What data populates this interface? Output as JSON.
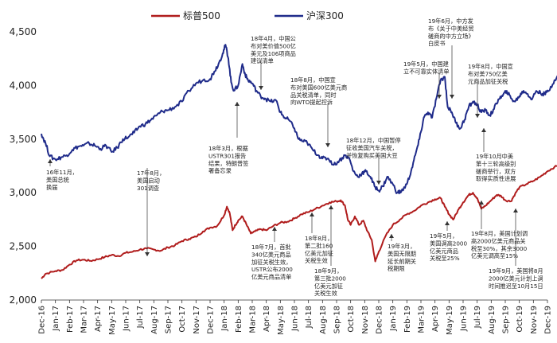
{
  "chart_data": {
    "type": "line",
    "title": "",
    "xlabel": "",
    "ylabel": "",
    "ylim": [
      2000,
      4500
    ],
    "y_ticks": [
      "2,000",
      "2,500",
      "3,000",
      "3,500",
      "4,000",
      "4,500"
    ],
    "y_tick_values": [
      2000,
      2500,
      3000,
      3500,
      4000,
      4500
    ],
    "grid": false,
    "legend": "top",
    "x_ticks": [
      "Dec-16",
      "Jan-17",
      "Feb-17",
      "Mar-17",
      "Apr-17",
      "May-17",
      "Jun-17",
      "Jul-17",
      "Aug-17",
      "Sep-17",
      "Oct-17",
      "Nov-17",
      "Dec-17",
      "Jan-18",
      "Feb-18",
      "Mar-18",
      "Apr-18",
      "May-18",
      "Jun-18",
      "Jul-18",
      "Aug-18",
      "Sep-18",
      "Oct-18",
      "Nov-18",
      "Dec-18",
      "Jan-19",
      "Feb-19",
      "Mar-19",
      "Apr-19",
      "May-19",
      "Jun-19",
      "Jul-19",
      "Aug-19",
      "Sep-19",
      "Oct-19",
      "Nov-19",
      "Dec-19"
    ],
    "series": [
      {
        "name": "标普500",
        "color": "#b01c1c",
        "points": [
          [
            0,
            2200
          ],
          [
            0.3,
            2245
          ],
          [
            1,
            2270
          ],
          [
            1.5,
            2280
          ],
          [
            2,
            2330
          ],
          [
            2.5,
            2370
          ],
          [
            3,
            2375
          ],
          [
            3.5,
            2365
          ],
          [
            4,
            2380
          ],
          [
            4.5,
            2400
          ],
          [
            5,
            2420
          ],
          [
            5.5,
            2410
          ],
          [
            6,
            2440
          ],
          [
            6.5,
            2450
          ],
          [
            7,
            2470
          ],
          [
            7.5,
            2480
          ],
          [
            8,
            2470
          ],
          [
            8.5,
            2460
          ],
          [
            9,
            2490
          ],
          [
            9.5,
            2510
          ],
          [
            10,
            2550
          ],
          [
            10.5,
            2570
          ],
          [
            11,
            2590
          ],
          [
            11.5,
            2640
          ],
          [
            12,
            2675
          ],
          [
            12.5,
            2690
          ],
          [
            13,
            2790
          ],
          [
            13.2,
            2870
          ],
          [
            13.4,
            2810
          ],
          [
            13.6,
            2650
          ],
          [
            13.8,
            2700
          ],
          [
            14,
            2740
          ],
          [
            14.3,
            2780
          ],
          [
            14.6,
            2700
          ],
          [
            14.9,
            2620
          ],
          [
            15.2,
            2640
          ],
          [
            15.6,
            2660
          ],
          [
            16,
            2650
          ],
          [
            16.5,
            2690
          ],
          [
            17,
            2720
          ],
          [
            17.5,
            2730
          ],
          [
            18,
            2760
          ],
          [
            18.5,
            2800
          ],
          [
            19,
            2820
          ],
          [
            19.5,
            2850
          ],
          [
            20,
            2880
          ],
          [
            20.5,
            2910
          ],
          [
            21,
            2920
          ],
          [
            21.3,
            2930
          ],
          [
            21.6,
            2880
          ],
          [
            21.8,
            2750
          ],
          [
            22,
            2700
          ],
          [
            22.3,
            2780
          ],
          [
            22.6,
            2700
          ],
          [
            22.9,
            2740
          ],
          [
            23.2,
            2640
          ],
          [
            23.5,
            2560
          ],
          [
            23.75,
            2360
          ],
          [
            24,
            2450
          ],
          [
            24.5,
            2600
          ],
          [
            25,
            2700
          ],
          [
            25.5,
            2750
          ],
          [
            26,
            2800
          ],
          [
            26.5,
            2830
          ],
          [
            27,
            2880
          ],
          [
            27.5,
            2910
          ],
          [
            28,
            2940
          ],
          [
            28.4,
            2950
          ],
          [
            28.7,
            2870
          ],
          [
            29,
            2800
          ],
          [
            29.3,
            2750
          ],
          [
            29.7,
            2850
          ],
          [
            30,
            2910
          ],
          [
            30.4,
            2980
          ],
          [
            30.7,
            3000
          ],
          [
            31,
            2950
          ],
          [
            31.3,
            2850
          ],
          [
            31.6,
            2880
          ],
          [
            32,
            2930
          ],
          [
            32.4,
            2980
          ],
          [
            32.7,
            2970
          ],
          [
            33,
            2930
          ],
          [
            33.4,
            2920
          ],
          [
            33.7,
            2990
          ],
          [
            34,
            3050
          ],
          [
            34.5,
            3080
          ],
          [
            35,
            3110
          ],
          [
            35.5,
            3150
          ],
          [
            36,
            3200
          ],
          [
            36.5,
            3240
          ],
          [
            37,
            3260
          ]
        ]
      },
      {
        "name": "沪深300",
        "color": "#1f2b8a",
        "points": [
          [
            0,
            3550
          ],
          [
            0.3,
            3460
          ],
          [
            0.6,
            3340
          ],
          [
            1,
            3310
          ],
          [
            1.4,
            3330
          ],
          [
            1.8,
            3350
          ],
          [
            2.2,
            3400
          ],
          [
            2.6,
            3430
          ],
          [
            3,
            3440
          ],
          [
            3.4,
            3460
          ],
          [
            3.8,
            3440
          ],
          [
            4.2,
            3410
          ],
          [
            4.6,
            3440
          ],
          [
            5,
            3380
          ],
          [
            5.4,
            3420
          ],
          [
            5.8,
            3500
          ],
          [
            6.2,
            3520
          ],
          [
            6.6,
            3560
          ],
          [
            7,
            3620
          ],
          [
            7.4,
            3640
          ],
          [
            7.8,
            3680
          ],
          [
            8.2,
            3720
          ],
          [
            8.6,
            3760
          ],
          [
            9,
            3770
          ],
          [
            9.5,
            3800
          ],
          [
            10,
            3850
          ],
          [
            10.5,
            3950
          ],
          [
            11,
            4020
          ],
          [
            11.5,
            4050
          ],
          [
            12,
            4060
          ],
          [
            12.3,
            4130
          ],
          [
            12.6,
            4200
          ],
          [
            12.9,
            4300
          ],
          [
            13.1,
            4380
          ],
          [
            13.3,
            4250
          ],
          [
            13.5,
            4030
          ],
          [
            13.7,
            3950
          ],
          [
            14,
            4000
          ],
          [
            14.3,
            4200
          ],
          [
            14.5,
            4100
          ],
          [
            14.7,
            4050
          ],
          [
            15,
            4020
          ],
          [
            15.3,
            3950
          ],
          [
            15.6,
            3900
          ],
          [
            15.9,
            3880
          ],
          [
            16.3,
            3850
          ],
          [
            16.7,
            3860
          ],
          [
            17,
            3750
          ],
          [
            17.3,
            3700
          ],
          [
            17.6,
            3680
          ],
          [
            18,
            3600
          ],
          [
            18.3,
            3500
          ],
          [
            18.6,
            3480
          ],
          [
            18.9,
            3470
          ],
          [
            19.3,
            3400
          ],
          [
            19.7,
            3350
          ],
          [
            20,
            3320
          ],
          [
            20.4,
            3320
          ],
          [
            20.8,
            3260
          ],
          [
            21.2,
            3300
          ],
          [
            21.6,
            3350
          ],
          [
            21.9,
            3320
          ],
          [
            22.2,
            3200
          ],
          [
            22.5,
            3150
          ],
          [
            22.8,
            3180
          ],
          [
            23.1,
            3200
          ],
          [
            23.4,
            3150
          ],
          [
            23.7,
            3060
          ],
          [
            24,
            3020
          ],
          [
            24.3,
            3060
          ],
          [
            24.6,
            3150
          ],
          [
            25,
            3080
          ],
          [
            25.3,
            3000
          ],
          [
            25.6,
            3010
          ],
          [
            26,
            3080
          ],
          [
            26.3,
            3200
          ],
          [
            26.6,
            3350
          ],
          [
            26.9,
            3500
          ],
          [
            27.2,
            3700
          ],
          [
            27.5,
            3750
          ],
          [
            27.8,
            3700
          ],
          [
            28.1,
            3880
          ],
          [
            28.4,
            4050
          ],
          [
            28.7,
            4080
          ],
          [
            28.9,
            3800
          ],
          [
            29.2,
            3750
          ],
          [
            29.5,
            3650
          ],
          [
            29.8,
            3600
          ],
          [
            30.1,
            3680
          ],
          [
            30.4,
            3800
          ],
          [
            30.7,
            3850
          ],
          [
            31,
            3820
          ],
          [
            31.3,
            3750
          ],
          [
            31.6,
            3770
          ],
          [
            31.9,
            3720
          ],
          [
            32.2,
            3780
          ],
          [
            32.5,
            3870
          ],
          [
            32.8,
            3900
          ],
          [
            33.1,
            3950
          ],
          [
            33.4,
            3880
          ],
          [
            33.7,
            3850
          ],
          [
            34,
            3900
          ],
          [
            34.3,
            3950
          ],
          [
            34.6,
            3920
          ],
          [
            34.9,
            3870
          ],
          [
            35.2,
            3950
          ],
          [
            35.5,
            3930
          ],
          [
            35.8,
            3920
          ],
          [
            36.1,
            3950
          ],
          [
            36.5,
            4050
          ],
          [
            37,
            4150
          ]
        ]
      }
    ]
  },
  "annotations": [
    {
      "lines": [
        "16年11月，",
        "美国总统",
        "换届"
      ]
    },
    {
      "lines": [
        "17年8月，",
        "美国启动",
        "301调查"
      ]
    },
    {
      "lines": [
        "18年3月，根据",
        "USTR301报告",
        "结果，特朗普签",
        "署备忘录"
      ]
    },
    {
      "lines": [
        "18年4月，中国公",
        "布对美价值500亿",
        "美元及106项商品",
        "建议清单"
      ]
    },
    {
      "lines": [
        "18年8月，中国宣",
        "布对美国600亿美元商",
        "品关税清单，同时",
        "向WTO提起控诉"
      ]
    },
    {
      "lines": [
        "18年12月，中国暂停",
        "征收美国汽车关税，",
        "并恢复购买美国大豆"
      ]
    },
    {
      "lines": [
        "18年7月，首批",
        "340亿美元商品",
        "加征关税生效，",
        "USTR公布2000",
        "亿美元商品清单"
      ]
    },
    {
      "lines": [
        "18年8月，",
        "第二批160",
        "亿美元加征",
        "关税生效"
      ]
    },
    {
      "lines": [
        "18年9月，",
        "第三批2000",
        "亿美元加征",
        "关税生效"
      ]
    },
    {
      "lines": [
        "19年3月，",
        "美国无限期",
        "延长前期关",
        "税期限"
      ]
    },
    {
      "lines": [
        "19年5月，",
        "美国调高2000",
        "亿美元商品",
        "关税至25%"
      ]
    },
    {
      "lines": [
        "19年5月，中国建",
        "立不可靠实体清单"
      ]
    },
    {
      "lines": [
        "19年6月，中方发",
        "布《关于中美经贸",
        "磋商的中方立场》",
        "白皮书"
      ]
    },
    {
      "lines": [
        "19年8月，中国宣",
        "布对美750亿美",
        "元商品加征关税"
      ]
    },
    {
      "lines": [
        "19年10月中美",
        "第十三轮高级别",
        "磋商举行，双方",
        "取得实质性进展"
      ]
    },
    {
      "lines": [
        "19年8月，美国计划调",
        "高2000亿美元商品关",
        "税至30%，其余3000",
        "亿美元调高至15%"
      ]
    },
    {
      "lines": [
        "19年9月，美国将8月",
        "2000亿美元计划上调",
        "时间推迟至10月15日"
      ]
    }
  ]
}
